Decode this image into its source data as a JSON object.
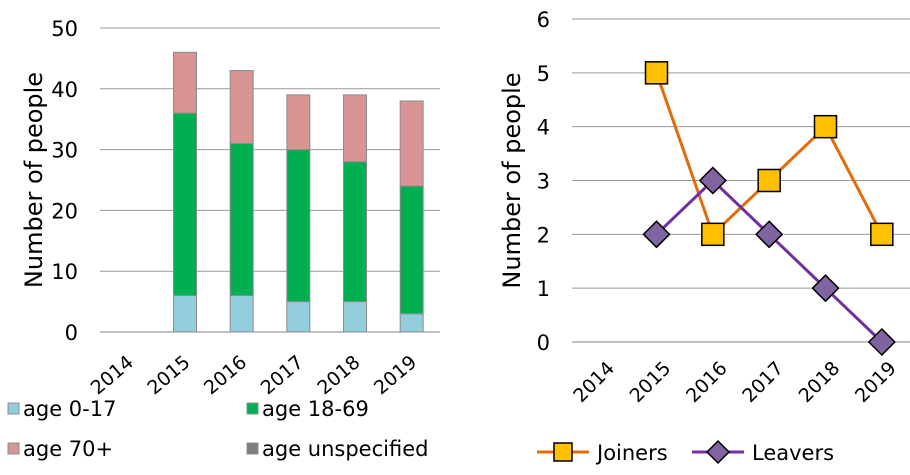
{
  "chart_data": [
    {
      "type": "bar",
      "stacked": true,
      "categories": [
        "2014",
        "2015",
        "2016",
        "2017",
        "2018",
        "2019"
      ],
      "ylabel": "Number of people",
      "ylim": [
        0,
        50
      ],
      "yticks": [
        0,
        10,
        20,
        30,
        40,
        50
      ],
      "grid": true,
      "legend_position": "bottom",
      "series": [
        {
          "name": "age 0-17",
          "color": "#92cddc",
          "values": [
            0,
            6,
            6,
            5,
            5,
            3
          ]
        },
        {
          "name": "age 18-69",
          "color": "#00b050",
          "values": [
            0,
            30,
            25,
            25,
            23,
            21
          ]
        },
        {
          "name": "age 70+",
          "color": "#d99594",
          "values": [
            0,
            10,
            12,
            9,
            11,
            14
          ]
        },
        {
          "name": "age unspecified",
          "color": "#7f7f7f",
          "values": [
            0,
            0,
            0,
            0,
            0,
            0
          ]
        }
      ]
    },
    {
      "type": "line",
      "categories": [
        "2014",
        "2015",
        "2016",
        "2017",
        "2018",
        "2019"
      ],
      "ylabel": "Number of people",
      "ylim": [
        0,
        6
      ],
      "yticks": [
        0,
        1,
        2,
        3,
        4,
        5,
        6
      ],
      "grid": true,
      "legend_position": "bottom",
      "series": [
        {
          "name": "Joiners",
          "color": "#e36c09",
          "marker_color": "#ffc000",
          "marker": "square",
          "values": [
            null,
            5,
            2,
            3,
            4,
            2
          ]
        },
        {
          "name": "Leavers",
          "color": "#7030a0",
          "marker_color": "#8064a2",
          "marker": "diamond",
          "values": [
            null,
            2,
            3,
            2,
            1,
            0
          ]
        }
      ]
    }
  ]
}
